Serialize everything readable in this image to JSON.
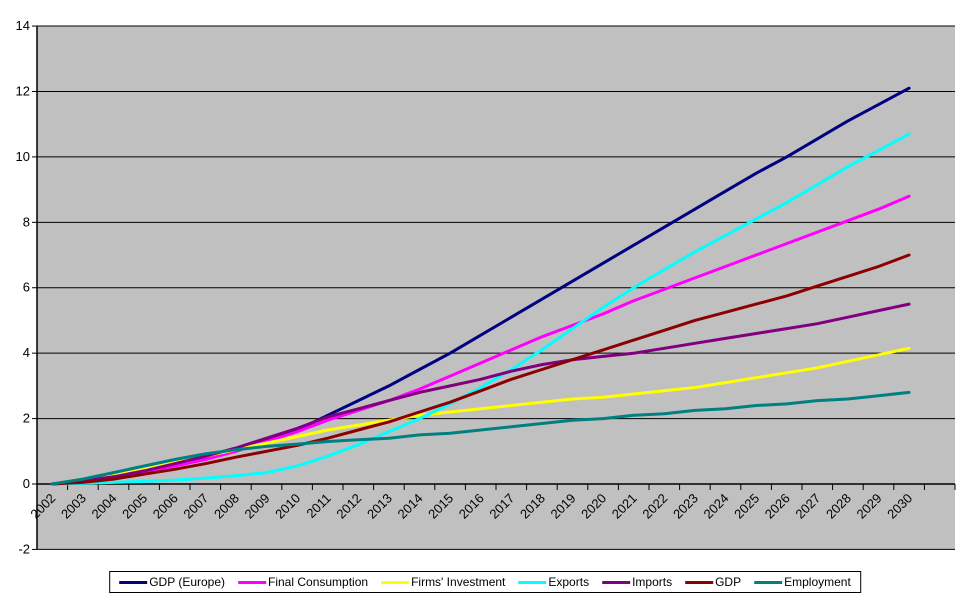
{
  "chart_data": {
    "type": "line",
    "title": "",
    "xlabel": "",
    "ylabel": "",
    "ylim": [
      -2,
      14
    ],
    "y_tick_step": 2,
    "y_tick_labels": [
      "-2",
      "0",
      "2",
      "4",
      "6",
      "8",
      "10",
      "12",
      "14"
    ],
    "grid": true,
    "plot_background": "#c0c0c0",
    "grid_color": "#000000",
    "axis_color": "#000000",
    "legend_position": "bottom",
    "categories": [
      2002,
      2003,
      2004,
      2005,
      2006,
      2007,
      2008,
      2009,
      2010,
      2011,
      2012,
      2013,
      2014,
      2015,
      2016,
      2017,
      2018,
      2019,
      2020,
      2021,
      2022,
      2023,
      2024,
      2025,
      2026,
      2027,
      2028,
      2029,
      2030
    ],
    "series": [
      {
        "name": "GDP (Europe)",
        "color": "#000080",
        "values": [
          0,
          0.1,
          0.25,
          0.42,
          0.6,
          0.8,
          1.05,
          1.35,
          1.65,
          2.1,
          2.55,
          3.0,
          3.5,
          4.0,
          4.55,
          5.1,
          5.65,
          6.2,
          6.75,
          7.3,
          7.85,
          8.4,
          8.95,
          9.5,
          10.0,
          10.55,
          11.1,
          11.6,
          12.1
        ]
      },
      {
        "name": "Final Consumption",
        "color": "#ff00ff",
        "values": [
          0,
          0.08,
          0.2,
          0.36,
          0.55,
          0.75,
          1.0,
          1.3,
          1.6,
          1.95,
          2.25,
          2.55,
          2.9,
          3.3,
          3.7,
          4.1,
          4.5,
          4.85,
          5.2,
          5.6,
          5.95,
          6.3,
          6.65,
          7.0,
          7.35,
          7.7,
          8.05,
          8.4,
          8.8
        ]
      },
      {
        "name": "Firms' Investment",
        "color": "#ffff00",
        "values": [
          0,
          0.1,
          0.25,
          0.45,
          0.65,
          0.85,
          1.05,
          1.25,
          1.45,
          1.65,
          1.8,
          1.95,
          2.1,
          2.2,
          2.3,
          2.4,
          2.5,
          2.6,
          2.65,
          2.75,
          2.85,
          2.95,
          3.1,
          3.25,
          3.4,
          3.55,
          3.75,
          3.95,
          4.15
        ]
      },
      {
        "name": "Exports",
        "color": "#00ffff",
        "values": [
          0,
          0.02,
          0.05,
          0.08,
          0.12,
          0.18,
          0.25,
          0.35,
          0.55,
          0.85,
          1.2,
          1.6,
          2.0,
          2.45,
          2.95,
          3.5,
          4.1,
          4.75,
          5.4,
          6.0,
          6.55,
          7.1,
          7.6,
          8.1,
          8.6,
          9.15,
          9.7,
          10.2,
          10.7
        ]
      },
      {
        "name": "Imports",
        "color": "#800080",
        "values": [
          0,
          0.1,
          0.22,
          0.4,
          0.62,
          0.85,
          1.1,
          1.4,
          1.7,
          2.05,
          2.3,
          2.55,
          2.8,
          3.0,
          3.2,
          3.45,
          3.65,
          3.8,
          3.9,
          4.0,
          4.15,
          4.3,
          4.45,
          4.6,
          4.75,
          4.9,
          5.1,
          5.3,
          5.5
        ]
      },
      {
        "name": "GDP",
        "color": "#8b0000",
        "values": [
          0,
          0.05,
          0.15,
          0.3,
          0.45,
          0.62,
          0.82,
          1.0,
          1.18,
          1.4,
          1.65,
          1.9,
          2.2,
          2.5,
          2.85,
          3.2,
          3.5,
          3.8,
          4.1,
          4.4,
          4.7,
          5.0,
          5.25,
          5.5,
          5.75,
          6.05,
          6.35,
          6.65,
          7.0
        ]
      },
      {
        "name": "Employment",
        "color": "#008080",
        "values": [
          0,
          0.15,
          0.35,
          0.55,
          0.75,
          0.92,
          1.05,
          1.15,
          1.22,
          1.3,
          1.35,
          1.4,
          1.5,
          1.55,
          1.65,
          1.75,
          1.85,
          1.95,
          2.0,
          2.1,
          2.15,
          2.25,
          2.3,
          2.4,
          2.45,
          2.55,
          2.6,
          2.7,
          2.8
        ]
      }
    ]
  }
}
